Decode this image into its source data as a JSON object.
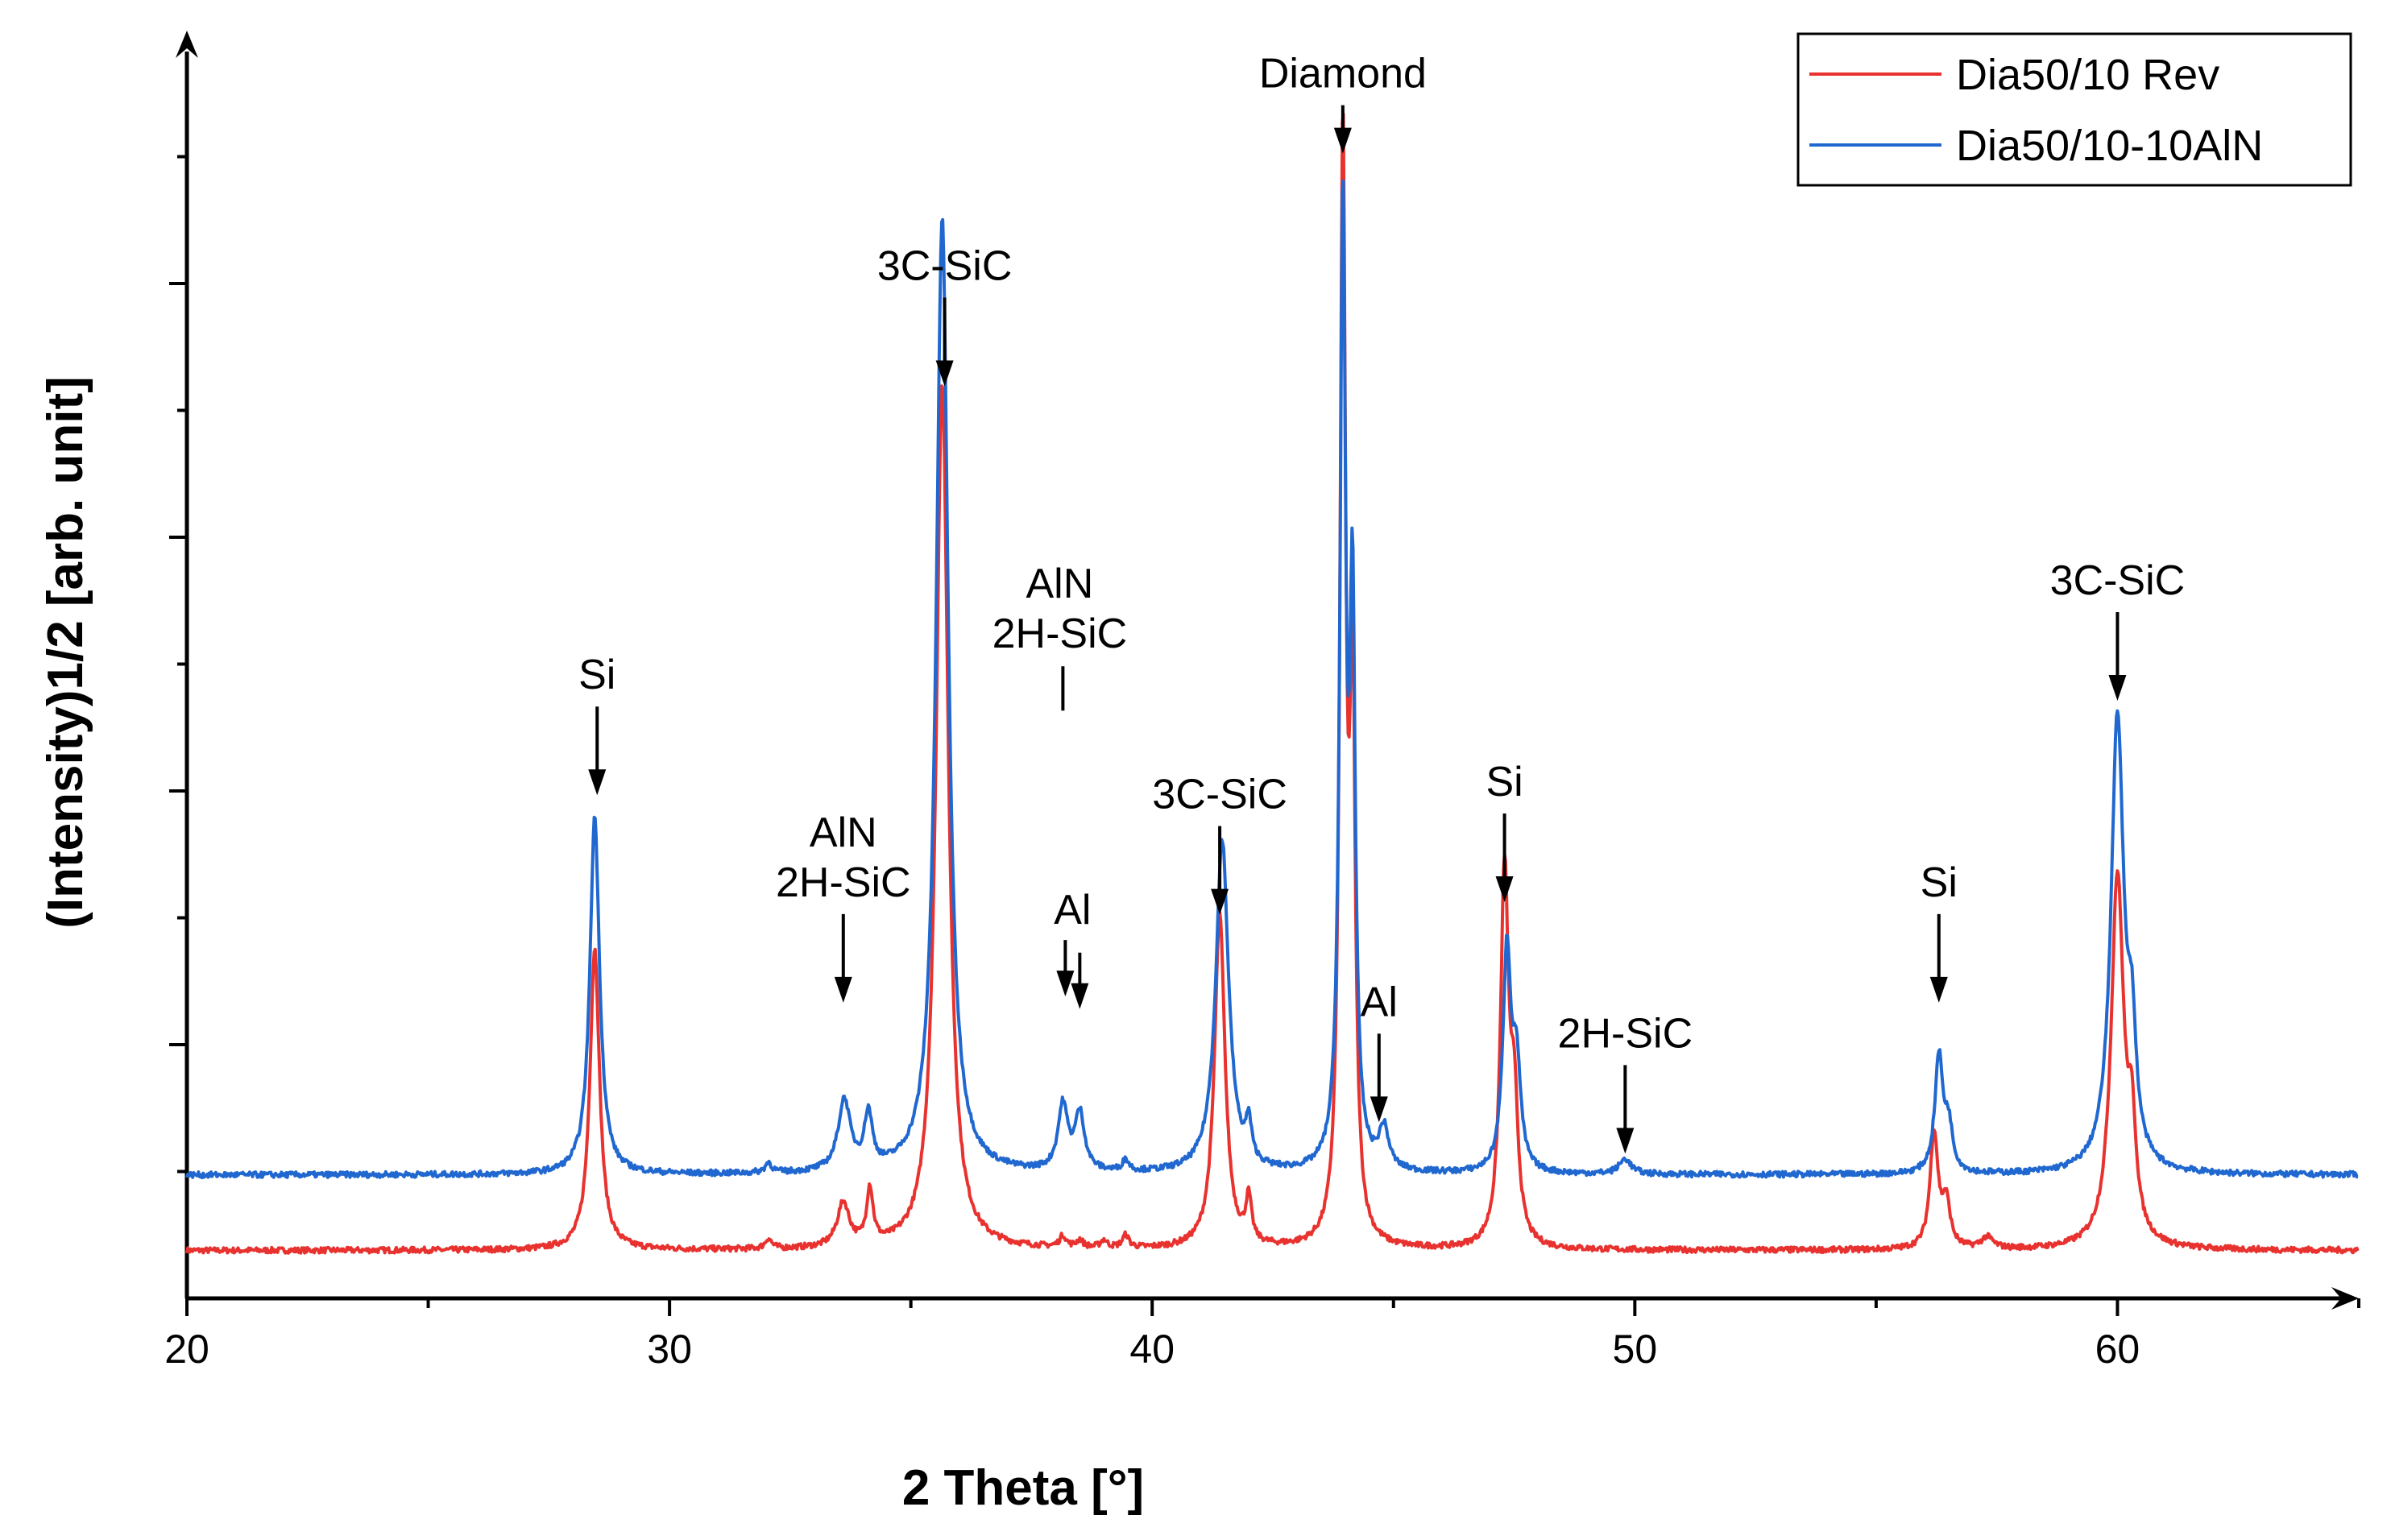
{
  "chart_data": {
    "type": "line",
    "title": "",
    "xlabel": "2 Theta [°]",
    "ylabel": "(Intensity)1/2 [arb. unit]",
    "xlim": [
      20,
      65
    ],
    "ylim": [
      0,
      100
    ],
    "x_ticks": [
      20,
      30,
      40,
      50,
      60
    ],
    "y_tick_labels_shown": false,
    "legend_position": "top-right",
    "series": [
      {
        "name": "Dia50/10 Rev",
        "color": "#e8322f",
        "baseline": 3.8,
        "peaks": [
          {
            "x": 28.45,
            "height": 24,
            "width": 0.12
          },
          {
            "x": 32.05,
            "height": 0.8,
            "width": 0.08
          },
          {
            "x": 33.6,
            "height": 3.5,
            "width": 0.15
          },
          {
            "x": 34.15,
            "height": 4.4,
            "width": 0.08
          },
          {
            "x": 35.65,
            "height": 69,
            "width": 0.15
          },
          {
            "x": 38.15,
            "height": 0.9,
            "width": 0.08
          },
          {
            "x": 38.5,
            "height": 0.6,
            "width": 0.08
          },
          {
            "x": 39.0,
            "height": 0.6,
            "width": 0.08
          },
          {
            "x": 39.45,
            "height": 1.0,
            "width": 0.08
          },
          {
            "x": 41.4,
            "height": 26.5,
            "width": 0.13
          },
          {
            "x": 42.0,
            "height": 3.5,
            "width": 0.07
          },
          {
            "x": 43.95,
            "height": 87,
            "width": 0.07
          },
          {
            "x": 44.15,
            "height": 42,
            "width": 0.07
          },
          {
            "x": 47.3,
            "height": 29.5,
            "width": 0.1
          },
          {
            "x": 47.5,
            "height": 10,
            "width": 0.1
          },
          {
            "x": 56.2,
            "height": 9.2,
            "width": 0.1
          },
          {
            "x": 56.45,
            "height": 3.5,
            "width": 0.1
          },
          {
            "x": 57.3,
            "height": 0.9,
            "width": 0.15
          },
          {
            "x": 60.0,
            "height": 29.5,
            "width": 0.16
          },
          {
            "x": 60.3,
            "height": 7.5,
            "width": 0.1
          }
        ]
      },
      {
        "name": "Dia50/10-10AlN",
        "color": "#2068d0",
        "baseline": 9.8,
        "peaks": [
          {
            "x": 28.45,
            "height": 28.5,
            "width": 0.12
          },
          {
            "x": 32.05,
            "height": 0.8,
            "width": 0.08
          },
          {
            "x": 33.62,
            "height": 5.6,
            "width": 0.15
          },
          {
            "x": 34.12,
            "height": 4.3,
            "width": 0.1
          },
          {
            "x": 35.65,
            "height": 76,
            "width": 0.15
          },
          {
            "x": 38.15,
            "height": 5.2,
            "width": 0.12
          },
          {
            "x": 38.5,
            "height": 4.5,
            "width": 0.12
          },
          {
            "x": 39.45,
            "height": 0.9,
            "width": 0.08
          },
          {
            "x": 41.45,
            "height": 26.5,
            "width": 0.16
          },
          {
            "x": 42.0,
            "height": 3.0,
            "width": 0.07
          },
          {
            "x": 43.95,
            "height": 75,
            "width": 0.07
          },
          {
            "x": 44.15,
            "height": 43,
            "width": 0.07
          },
          {
            "x": 44.8,
            "height": 3.2,
            "width": 0.12
          },
          {
            "x": 47.35,
            "height": 17.5,
            "width": 0.1
          },
          {
            "x": 47.55,
            "height": 8,
            "width": 0.1
          },
          {
            "x": 49.8,
            "height": 1.2,
            "width": 0.15
          },
          {
            "x": 56.3,
            "height": 9.2,
            "width": 0.1
          },
          {
            "x": 56.5,
            "height": 3.5,
            "width": 0.1
          },
          {
            "x": 60.0,
            "height": 36.2,
            "width": 0.16
          },
          {
            "x": 60.3,
            "height": 8.5,
            "width": 0.1
          }
        ]
      }
    ],
    "annotations": [
      {
        "lines": [
          "Si"
        ],
        "x": 28.5,
        "arrow_to_y": 40
      },
      {
        "lines": [
          "AlN",
          "2H-SiC"
        ],
        "x": 33.6,
        "arrow_to_y": 23.5
      },
      {
        "lines": [
          "3C-SiC"
        ],
        "x": 35.7,
        "arrow_to_y": 72.5
      },
      {
        "lines": [
          "AlN",
          "2H-SiC"
        ],
        "x": 38.1,
        "arrow_to_y": 24
      },
      {
        "lines": [
          "Al"
        ],
        "x": 38.2,
        "arrow_to_y": 24
      },
      {
        "lines": [],
        "x": 38.5,
        "arrow_to_y": 23
      },
      {
        "lines": [
          "3C-SiC"
        ],
        "x": 41.4,
        "arrow_to_y": 30.5
      },
      {
        "lines": [
          "Diamond"
        ],
        "x": 43.95,
        "arrow_to_y": 91
      },
      {
        "lines": [
          "Al"
        ],
        "x": 44.7,
        "arrow_to_y": 14
      },
      {
        "lines": [
          "Si"
        ],
        "x": 47.3,
        "arrow_to_y": 31.5
      },
      {
        "lines": [
          "2H-SiC"
        ],
        "x": 49.8,
        "arrow_to_y": 11.5
      },
      {
        "lines": [
          "Si"
        ],
        "x": 56.3,
        "arrow_to_y": 23.5
      },
      {
        "lines": [
          "3C-SiC"
        ],
        "x": 60.0,
        "arrow_to_y": 47.5
      }
    ]
  }
}
